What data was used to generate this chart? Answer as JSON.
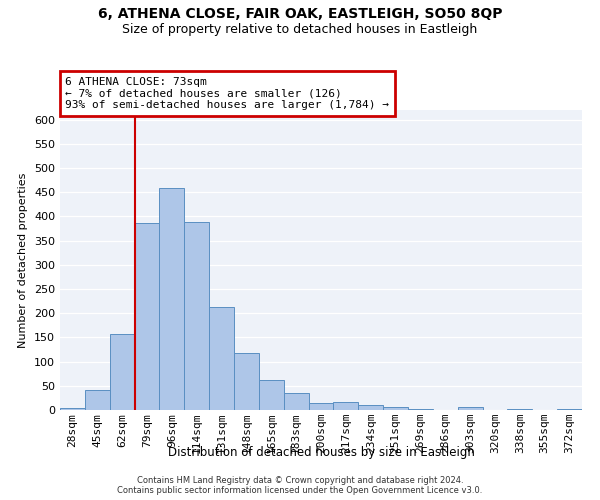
{
  "title": "6, ATHENA CLOSE, FAIR OAK, EASTLEIGH, SO50 8QP",
  "subtitle": "Size of property relative to detached houses in Eastleigh",
  "xlabel": "Distribution of detached houses by size in Eastleigh",
  "ylabel": "Number of detached properties",
  "categories": [
    "28sqm",
    "45sqm",
    "62sqm",
    "79sqm",
    "96sqm",
    "114sqm",
    "131sqm",
    "148sqm",
    "165sqm",
    "183sqm",
    "200sqm",
    "217sqm",
    "234sqm",
    "251sqm",
    "269sqm",
    "286sqm",
    "303sqm",
    "320sqm",
    "338sqm",
    "355sqm",
    "372sqm"
  ],
  "values": [
    5,
    42,
    157,
    387,
    458,
    388,
    213,
    118,
    62,
    35,
    15,
    16,
    10,
    7,
    2,
    0,
    7,
    0,
    2,
    0,
    2
  ],
  "bar_color": "#aec6e8",
  "bar_edge_color": "#5a8fc2",
  "vline_color": "#cc0000",
  "annotation_text": "6 ATHENA CLOSE: 73sqm\n← 7% of detached houses are smaller (126)\n93% of semi-detached houses are larger (1,784) →",
  "annotation_box_color": "#cc0000",
  "ylim": [
    0,
    620
  ],
  "yticks": [
    0,
    50,
    100,
    150,
    200,
    250,
    300,
    350,
    400,
    450,
    500,
    550,
    600
  ],
  "footer_line1": "Contains HM Land Registry data © Crown copyright and database right 2024.",
  "footer_line2": "Contains public sector information licensed under the Open Government Licence v3.0.",
  "bg_color": "#eef2f9",
  "title_fontsize": 10,
  "subtitle_fontsize": 9
}
